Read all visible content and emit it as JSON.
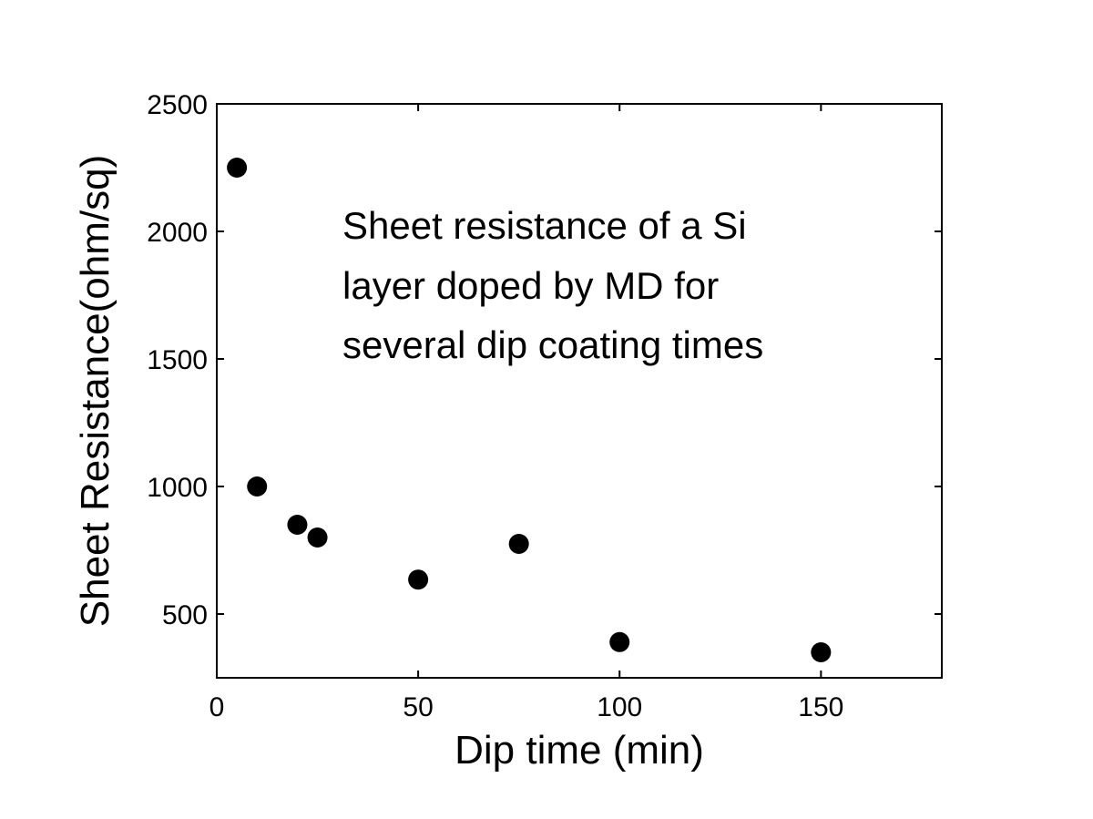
{
  "chart_data": {
    "type": "scatter",
    "title": "",
    "xlabel": "Dip time (min)",
    "ylabel": "Sheet Resistance(ohm/sq)",
    "xlim": [
      0,
      180
    ],
    "ylim": [
      250,
      2500
    ],
    "xticks": [
      0,
      50,
      100,
      150
    ],
    "yticks": [
      500,
      1000,
      1500,
      2000,
      2500
    ],
    "grid": false,
    "legend": "none",
    "marker_color": "#000000",
    "annotation": [
      "Sheet resistance of a Si",
      "layer doped by MD for",
      "several dip coating times"
    ],
    "series": [
      {
        "x": [
          5,
          10,
          20,
          25,
          50,
          75,
          100,
          150
        ],
        "y": [
          2250,
          1000,
          850,
          800,
          635,
          775,
          390,
          350
        ]
      }
    ]
  }
}
